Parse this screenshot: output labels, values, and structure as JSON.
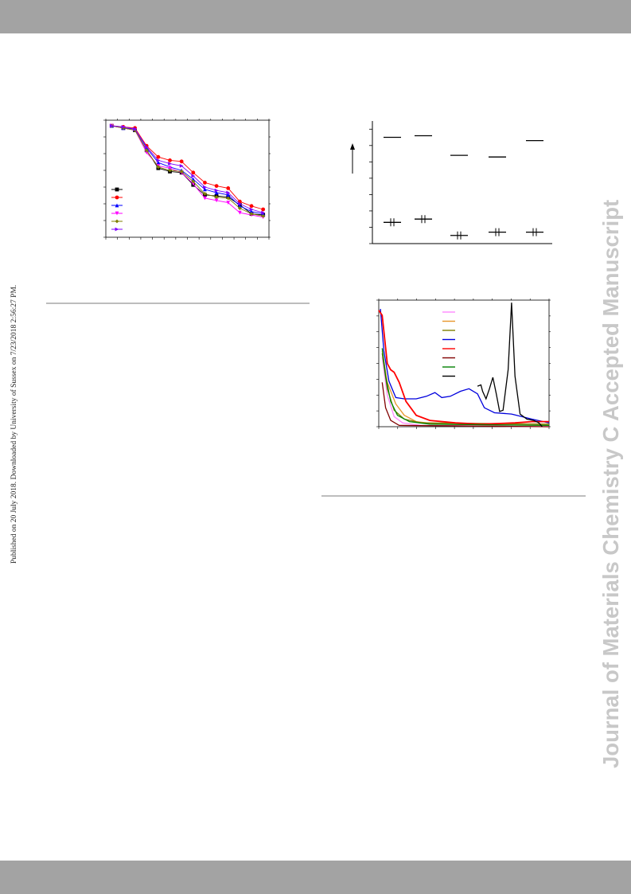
{
  "side_note": "Published on 20 July 2018. Downloaded by University of Sussex on 7/23/2018 2:56:27 PM.",
  "watermark": "Journal of Materials Chemistry C Accepted Manuscript",
  "colors": {
    "band": "#a3a3a3",
    "rule": "#bdbdbd",
    "watermark": "#c8c8c8"
  },
  "chart_data": [
    {
      "type": "line",
      "x": [
        1,
        2,
        3,
        4,
        5,
        6,
        7,
        8,
        9,
        10,
        11,
        12,
        13,
        14
      ],
      "xlim": [
        0.5,
        14.5
      ],
      "ylim": [
        0,
        1.05
      ],
      "series": [
        {
          "color": "#000000",
          "marker": "square",
          "values": [
            1.0,
            0.98,
            0.96,
            0.78,
            0.62,
            0.59,
            0.58,
            0.47,
            0.38,
            0.37,
            0.36,
            0.29,
            0.21,
            0.2
          ]
        },
        {
          "color": "#ff0000",
          "marker": "circle",
          "values": [
            1.0,
            0.99,
            0.98,
            0.82,
            0.72,
            0.69,
            0.68,
            0.58,
            0.49,
            0.46,
            0.44,
            0.32,
            0.28,
            0.25
          ]
        },
        {
          "color": "#0000ff",
          "marker": "triangle-up",
          "values": [
            1.0,
            0.98,
            0.97,
            0.8,
            0.67,
            0.63,
            0.6,
            0.52,
            0.43,
            0.4,
            0.38,
            0.28,
            0.23,
            0.21
          ]
        },
        {
          "color": "#ff00ff",
          "marker": "triangle-down",
          "values": [
            1.0,
            0.98,
            0.96,
            0.76,
            0.64,
            0.62,
            0.58,
            0.48,
            0.35,
            0.33,
            0.31,
            0.22,
            0.2,
            0.18
          ]
        },
        {
          "color": "#808000",
          "marker": "diamond",
          "values": [
            1.0,
            0.98,
            0.96,
            0.78,
            0.63,
            0.6,
            0.59,
            0.5,
            0.39,
            0.36,
            0.35,
            0.26,
            0.21,
            0.19
          ]
        },
        {
          "color": "#8000ff",
          "marker": "triangle-right",
          "values": [
            1.0,
            0.99,
            0.97,
            0.81,
            0.69,
            0.66,
            0.64,
            0.55,
            0.45,
            0.42,
            0.4,
            0.3,
            0.25,
            0.22
          ]
        }
      ]
    },
    {
      "type": "energy-level diagram",
      "ylim": [
        0,
        7.5
      ],
      "columns": [
        {
          "x": 1,
          "upper": 6.5,
          "lower": 1.3
        },
        {
          "x": 2,
          "upper": 6.6,
          "lower": 1.5
        },
        {
          "x": 3,
          "upper": 5.4,
          "lower": 0.5
        },
        {
          "x": 4,
          "upper": 5.3,
          "lower": 0.7
        },
        {
          "x": 5,
          "upper": 6.3,
          "lower": 0.7
        }
      ]
    },
    {
      "type": "line",
      "xlim": [
        0,
        10
      ],
      "ylim": [
        0,
        1
      ],
      "series": [
        {
          "color": "#ff88ff",
          "points": [
            [
              0.2,
              0.55
            ],
            [
              0.5,
              0.25
            ],
            [
              0.9,
              0.08
            ],
            [
              1.4,
              0.03
            ],
            [
              2.5,
              0.01
            ],
            [
              10,
              0.0
            ]
          ]
        },
        {
          "color": "#e8962c",
          "points": [
            [
              0.2,
              0.6
            ],
            [
              0.5,
              0.35
            ],
            [
              1.0,
              0.18
            ],
            [
              1.5,
              0.09
            ],
            [
              2.2,
              0.04
            ],
            [
              3.5,
              0.02
            ],
            [
              10,
              0.01
            ]
          ]
        },
        {
          "color": "#808000",
          "points": [
            [
              0.2,
              0.58
            ],
            [
              0.5,
              0.3
            ],
            [
              0.9,
              0.13
            ],
            [
              1.5,
              0.06
            ],
            [
              2.5,
              0.03
            ],
            [
              10,
              0.02
            ]
          ]
        },
        {
          "color": "#0000dd",
          "points": [
            [
              0.1,
              0.93
            ],
            [
              0.3,
              0.6
            ],
            [
              0.6,
              0.36
            ],
            [
              1.0,
              0.23
            ],
            [
              1.5,
              0.22
            ],
            [
              2.2,
              0.22
            ],
            [
              2.8,
              0.24
            ],
            [
              3.3,
              0.27
            ],
            [
              3.7,
              0.23
            ],
            [
              4.2,
              0.24
            ],
            [
              4.8,
              0.28
            ],
            [
              5.3,
              0.3
            ],
            [
              5.8,
              0.26
            ],
            [
              6.2,
              0.15
            ],
            [
              6.8,
              0.11
            ],
            [
              7.8,
              0.1
            ],
            [
              9.0,
              0.06
            ],
            [
              10,
              0.03
            ]
          ]
        },
        {
          "color": "#ff0000",
          "points": [
            [
              0.0,
              0.92
            ],
            [
              0.2,
              0.88
            ],
            [
              0.5,
              0.5
            ],
            [
              0.7,
              0.45
            ],
            [
              0.9,
              0.43
            ],
            [
              1.2,
              0.35
            ],
            [
              1.6,
              0.2
            ],
            [
              2.2,
              0.09
            ],
            [
              3.0,
              0.05
            ],
            [
              4.5,
              0.03
            ],
            [
              6.0,
              0.02
            ],
            [
              8.0,
              0.03
            ],
            [
              9.0,
              0.04
            ],
            [
              10,
              0.04
            ]
          ]
        },
        {
          "color": "#800000",
          "points": [
            [
              0.2,
              0.35
            ],
            [
              0.4,
              0.15
            ],
            [
              0.7,
              0.05
            ],
            [
              1.2,
              0.01
            ],
            [
              10,
              0.0
            ]
          ]
        },
        {
          "color": "#008000",
          "points": [
            [
              0.2,
              0.62
            ],
            [
              0.4,
              0.4
            ],
            [
              0.7,
              0.2
            ],
            [
              1.1,
              0.09
            ],
            [
              1.8,
              0.04
            ],
            [
              3.0,
              0.02
            ],
            [
              10,
              0.01
            ]
          ]
        },
        {
          "color": "#000000",
          "points": [
            [
              5.8,
              0.32
            ],
            [
              6.0,
              0.33
            ],
            [
              6.1,
              0.28
            ],
            [
              6.3,
              0.22
            ],
            [
              6.5,
              0.3
            ],
            [
              6.7,
              0.39
            ],
            [
              6.9,
              0.26
            ],
            [
              7.1,
              0.12
            ],
            [
              7.3,
              0.13
            ],
            [
              7.6,
              0.45
            ],
            [
              7.8,
              0.98
            ],
            [
              8.0,
              0.4
            ],
            [
              8.3,
              0.1
            ],
            [
              8.7,
              0.06
            ],
            [
              9.1,
              0.05
            ],
            [
              9.4,
              0.03
            ],
            [
              9.6,
              0.0
            ]
          ]
        }
      ]
    }
  ]
}
